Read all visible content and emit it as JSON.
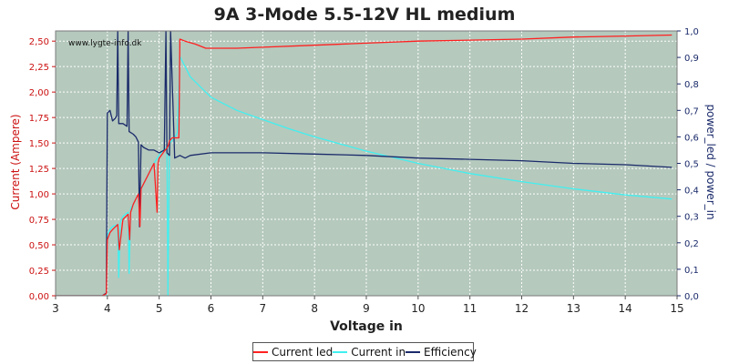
{
  "chart_data": {
    "type": "line",
    "title": "9A 3-Mode 5.5-12V HL medium",
    "watermark": "www.lygte-info.dk",
    "xlabel": "Voltage in",
    "ylabel_left": "Current (Ampere)",
    "ylabel_right": "power_led / power_in",
    "xlim": [
      3,
      15
    ],
    "ylim_left": [
      0,
      2.6
    ],
    "ylim_right": [
      0,
      1.0
    ],
    "x_ticks": [
      "3",
      "4",
      "5",
      "6",
      "7",
      "8",
      "9",
      "10",
      "11",
      "12",
      "13",
      "14",
      "15"
    ],
    "y_left_ticks": [
      "0,00",
      "0,25",
      "0,50",
      "0,75",
      "1,00",
      "1,25",
      "1,50",
      "1,75",
      "2,00",
      "2,25",
      "2,50"
    ],
    "y_right_ticks": [
      "0,0",
      "0,1",
      "0,2",
      "0,3",
      "0,4",
      "0,5",
      "0,6",
      "0,7",
      "0,8",
      "0,9",
      "1,0"
    ],
    "grid": true,
    "legend_position": "bottom",
    "background": "#b5c9bd",
    "colors": {
      "current_led": "#ff2020",
      "current_in": "#40f0f0",
      "efficiency": "#1a2a6a",
      "left_axis": "#cc1111",
      "right_axis": "#1a2a6a"
    },
    "series": [
      {
        "name": "Current led",
        "axis": "left",
        "color": "#ff2020",
        "x": [
          3.0,
          3.9,
          3.98,
          4.0,
          4.05,
          4.1,
          4.2,
          4.23,
          4.3,
          4.4,
          4.43,
          4.45,
          4.5,
          4.6,
          4.63,
          4.65,
          4.7,
          4.8,
          4.9,
          4.96,
          4.98,
          5.0,
          5.1,
          5.15,
          5.18,
          5.2,
          5.25,
          5.3,
          5.35,
          5.38,
          5.4,
          5.5,
          5.7,
          5.9,
          6.0,
          6.5,
          7.0,
          8.0,
          9.0,
          10.0,
          11.0,
          12.0,
          13.0,
          14.0,
          14.9
        ],
        "y": [
          0.0,
          0.0,
          0.02,
          0.55,
          0.62,
          0.65,
          0.7,
          0.45,
          0.75,
          0.8,
          0.55,
          0.82,
          0.9,
          1.0,
          0.68,
          1.05,
          1.1,
          1.2,
          1.3,
          0.82,
          1.3,
          1.35,
          1.42,
          1.45,
          1.48,
          1.52,
          1.55,
          1.55,
          1.55,
          1.55,
          2.52,
          2.5,
          2.47,
          2.43,
          2.43,
          2.43,
          2.44,
          2.46,
          2.48,
          2.5,
          2.51,
          2.52,
          2.54,
          2.55,
          2.56
        ]
      },
      {
        "name": "Current in",
        "axis": "left",
        "color": "#40f0f0",
        "x": [
          3.0,
          3.98,
          4.0,
          4.05,
          4.1,
          4.2,
          4.22,
          4.25,
          4.3,
          4.4,
          4.42,
          4.45,
          4.5,
          4.6,
          4.7,
          4.8,
          4.9,
          5.0,
          5.1,
          5.15,
          5.17,
          5.2,
          5.3,
          5.35,
          5.4,
          5.5,
          5.6,
          5.8,
          6.0,
          6.5,
          7.0,
          7.5,
          8.0,
          8.5,
          9.0,
          9.5,
          10.0,
          11.0,
          12.0,
          13.0,
          14.0,
          14.9
        ],
        "y": [
          0.0,
          0.0,
          0.6,
          0.65,
          0.68,
          0.7,
          0.18,
          0.72,
          0.78,
          0.82,
          0.22,
          0.86,
          0.9,
          1.0,
          1.1,
          1.2,
          1.3,
          1.38,
          1.44,
          1.46,
          0.0,
          1.5,
          1.55,
          1.6,
          2.35,
          2.25,
          2.15,
          2.05,
          1.95,
          1.82,
          1.73,
          1.64,
          1.56,
          1.49,
          1.42,
          1.36,
          1.3,
          1.2,
          1.12,
          1.05,
          0.99,
          0.95
        ]
      },
      {
        "name": "Efficiency",
        "axis": "right",
        "color": "#1a2a6a",
        "x": [
          3.0,
          3.9,
          3.98,
          4.0,
          4.05,
          4.1,
          4.15,
          4.18,
          4.2,
          4.22,
          4.3,
          4.38,
          4.4,
          4.42,
          4.5,
          4.55,
          4.6,
          4.62,
          4.65,
          4.7,
          4.8,
          4.9,
          5.0,
          5.1,
          5.13,
          5.15,
          5.2,
          5.22,
          5.3,
          5.4,
          5.5,
          5.6,
          6.0,
          6.5,
          7.0,
          8.0,
          9.0,
          10.0,
          11.0,
          12.0,
          13.0,
          14.0,
          14.9
        ],
        "y": [
          0.0,
          0.0,
          0.01,
          0.69,
          0.7,
          0.66,
          0.67,
          0.68,
          1.0,
          0.65,
          0.65,
          0.64,
          1.0,
          0.62,
          0.61,
          0.6,
          0.58,
          0.26,
          0.57,
          0.56,
          0.55,
          0.55,
          0.54,
          0.55,
          1.0,
          0.54,
          0.53,
          1.0,
          0.52,
          0.53,
          0.52,
          0.53,
          0.54,
          0.54,
          0.54,
          0.535,
          0.53,
          0.52,
          0.515,
          0.51,
          0.5,
          0.495,
          0.485
        ]
      }
    ]
  }
}
